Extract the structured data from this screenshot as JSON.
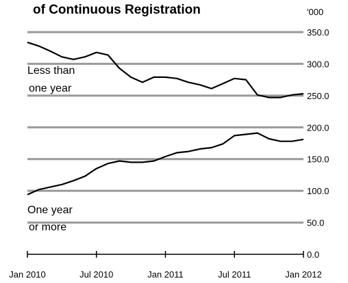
{
  "chart_data": {
    "type": "line",
    "title": "of Continuous  Registration",
    "unit_label": "'000",
    "ylim": [
      0,
      350
    ],
    "y_ticks": [
      0,
      50,
      100,
      150,
      200,
      250,
      300,
      350
    ],
    "y_tick_labels": [
      "0.0",
      "50.0",
      "100.0",
      "150.0",
      "200.0",
      "250.0",
      "300.0",
      "350.0"
    ],
    "x_ticks": [
      0,
      6,
      12,
      18,
      24
    ],
    "x_tick_labels": [
      "Jan 2010",
      "Jul 2010",
      "Jan 2011",
      "Jul 2011",
      "Jan 2012"
    ],
    "grid": true,
    "series": [
      {
        "label_lines": [
          "Less than",
          "one year"
        ],
        "x": [
          0,
          1,
          2,
          3,
          4,
          5,
          6,
          7,
          8,
          9,
          10,
          11,
          12,
          13,
          14,
          15,
          16,
          17,
          18,
          19,
          20,
          21,
          22,
          23,
          24
        ],
        "values": [
          334,
          328,
          320,
          311,
          307,
          311,
          318,
          314,
          293,
          279,
          271,
          279,
          279,
          277,
          271,
          267,
          261,
          269,
          277,
          275,
          251,
          247,
          247,
          251,
          253
        ]
      },
      {
        "label_lines": [
          "One year",
          "or more"
        ],
        "x": [
          0,
          1,
          2,
          3,
          4,
          5,
          6,
          7,
          8,
          9,
          10,
          11,
          12,
          13,
          14,
          15,
          16,
          17,
          18,
          19,
          20,
          21,
          22,
          23,
          24
        ],
        "values": [
          94,
          102,
          106,
          110,
          116,
          123,
          135,
          143,
          147,
          145,
          145,
          147,
          154,
          160,
          162,
          166,
          168,
          174,
          187,
          189,
          191,
          182,
          178,
          178,
          181
        ]
      }
    ]
  }
}
